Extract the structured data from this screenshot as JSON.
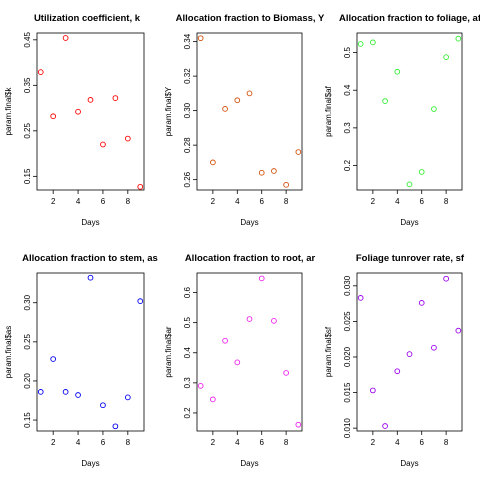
{
  "chart_data": [
    {
      "type": "scatter",
      "title": "Utilization coefficient, k",
      "xlabel": "Days",
      "ylabel": "param.final$k",
      "x": [
        1,
        2,
        3,
        4,
        5,
        6,
        7,
        8,
        9
      ],
      "y": [
        0.379,
        0.282,
        0.454,
        0.292,
        0.318,
        0.22,
        0.322,
        0.233,
        0.127
      ],
      "xlim": [
        0.7,
        9.3
      ],
      "ylim": [
        0.12,
        0.465
      ],
      "xticks": [
        2,
        4,
        6,
        8
      ],
      "yticks": [
        0.15,
        0.25,
        0.35,
        0.45
      ],
      "ytick_labels": [
        "0.15",
        "0.25",
        "0.35",
        "0.45"
      ],
      "color": "#ff0000"
    },
    {
      "type": "scatter",
      "title": "Allocation fraction to Biomass, Y",
      "xlabel": "Days",
      "ylabel": "param.final$Y",
      "x": [
        1,
        2,
        3,
        4,
        5,
        6,
        7,
        8,
        9
      ],
      "y": [
        0.342,
        0.27,
        0.301,
        0.306,
        0.31,
        0.264,
        0.265,
        0.257,
        0.276
      ],
      "xlim": [
        0.7,
        9.3
      ],
      "ylim": [
        0.254,
        0.345
      ],
      "xticks": [
        2,
        4,
        6,
        8
      ],
      "yticks": [
        0.26,
        0.28,
        0.3,
        0.32,
        0.34
      ],
      "ytick_labels": [
        "0.26",
        "0.28",
        "0.30",
        "0.32",
        "0.34"
      ],
      "color": "#d2500a"
    },
    {
      "type": "scatter",
      "title": "Allocation fraction to foliage, af",
      "xlabel": "Days",
      "ylabel": "param.final$af",
      "x": [
        1,
        2,
        3,
        4,
        5,
        6,
        7,
        8,
        9
      ],
      "y": [
        0.523,
        0.527,
        0.371,
        0.449,
        0.15,
        0.183,
        0.35,
        0.488,
        0.537
      ],
      "xlim": [
        0.7,
        9.3
      ],
      "ylim": [
        0.135,
        0.552
      ],
      "xticks": [
        2,
        4,
        6,
        8
      ],
      "yticks": [
        0.2,
        0.3,
        0.4,
        0.5
      ],
      "ytick_labels": [
        "0.2",
        "0.3",
        "0.4",
        "0.5"
      ],
      "color": "#33ee33"
    },
    {
      "type": "scatter",
      "title": "Allocation fraction to stem, as",
      "xlabel": "Days",
      "ylabel": "param.final$as",
      "x": [
        1,
        2,
        3,
        4,
        5,
        6,
        7,
        8,
        9
      ],
      "y": [
        0.186,
        0.228,
        0.186,
        0.182,
        0.332,
        0.169,
        0.142,
        0.179,
        0.302
      ],
      "xlim": [
        0.7,
        9.3
      ],
      "ylim": [
        0.136,
        0.338
      ],
      "xticks": [
        2,
        4,
        6,
        8
      ],
      "yticks": [
        0.15,
        0.2,
        0.25,
        0.3
      ],
      "ytick_labels": [
        "0.15",
        "0.20",
        "0.25",
        "0.30"
      ],
      "color": "#0000ee"
    },
    {
      "type": "scatter",
      "title": "Allocation fraction to root, ar",
      "xlabel": "Days",
      "ylabel": "param.final$ar",
      "x": [
        1,
        2,
        3,
        4,
        5,
        6,
        7,
        8,
        9
      ],
      "y": [
        0.29,
        0.245,
        0.44,
        0.368,
        0.512,
        0.647,
        0.506,
        0.333,
        0.161
      ],
      "xlim": [
        0.7,
        9.3
      ],
      "ylim": [
        0.14,
        0.665
      ],
      "xticks": [
        2,
        4,
        6,
        8
      ],
      "yticks": [
        0.2,
        0.3,
        0.4,
        0.5,
        0.6
      ],
      "ytick_labels": [
        "0.2",
        "0.3",
        "0.4",
        "0.5",
        "0.6"
      ],
      "color": "#ee22ee"
    },
    {
      "type": "scatter",
      "title": "Foliage tunrover rate, sf",
      "xlabel": "Days",
      "ylabel": "param.final$sf",
      "x": [
        1,
        2,
        3,
        4,
        5,
        6,
        7,
        8,
        9
      ],
      "y": [
        0.0283,
        0.0153,
        0.0103,
        0.018,
        0.0204,
        0.0276,
        0.0213,
        0.031,
        0.0237
      ],
      "xlim": [
        0.7,
        9.3
      ],
      "ylim": [
        0.0096,
        0.0318
      ],
      "xticks": [
        2,
        4,
        6,
        8
      ],
      "yticks": [
        0.01,
        0.015,
        0.02,
        0.025,
        0.03
      ],
      "ytick_labels": [
        "0.010",
        "0.015",
        "0.020",
        "0.025",
        "0.030"
      ],
      "color": "#9900ee"
    }
  ]
}
